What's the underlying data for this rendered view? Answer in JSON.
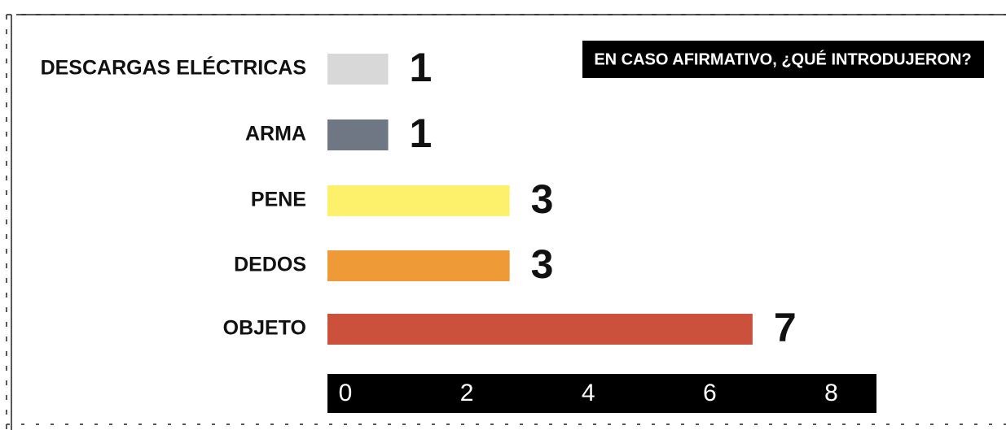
{
  "chart_data": {
    "type": "bar",
    "orientation": "horizontal",
    "title": "EN CASO AFIRMATIVO, ¿QUÉ INTRODUJERON?",
    "categories": [
      "DESCARGAS ELÉCTRICAS",
      "ARMA",
      "PENE",
      "DEDOS",
      "OBJETO"
    ],
    "values": [
      1,
      1,
      3,
      3,
      7
    ],
    "colors": [
      "#d8d8d8",
      "#6f7784",
      "#fdf06a",
      "#ee9a36",
      "#cb513d"
    ],
    "xlim": [
      0,
      9
    ],
    "xticks": [
      0,
      2,
      4,
      6,
      8
    ]
  }
}
